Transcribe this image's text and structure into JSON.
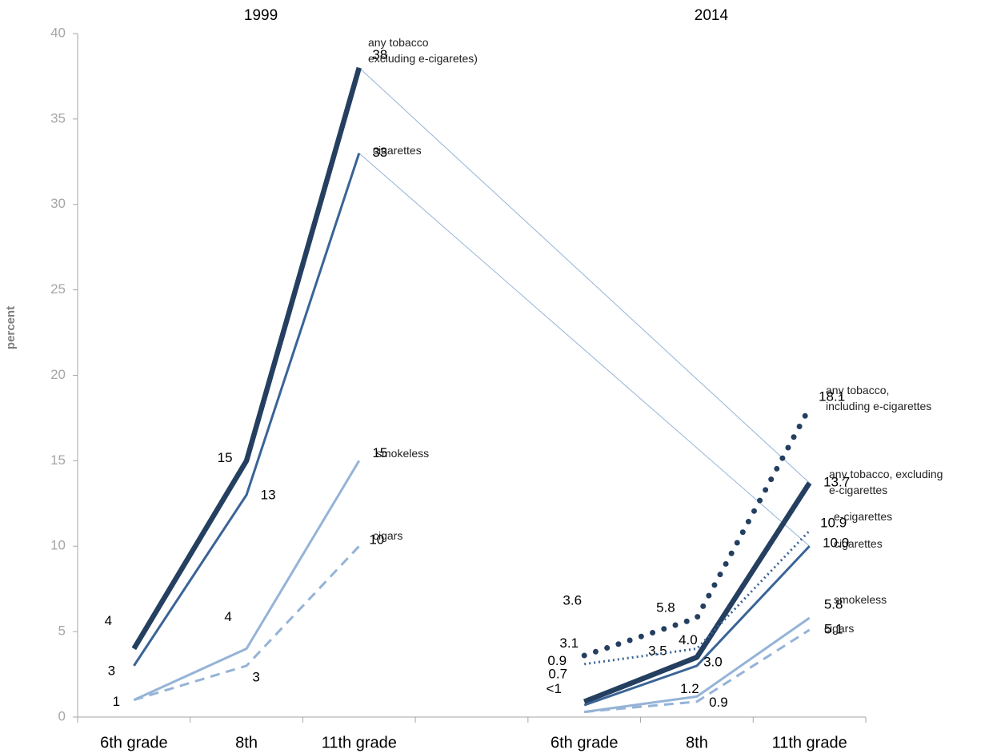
{
  "chart_data": {
    "type": "line",
    "panel_titles": [
      "1999",
      "2014"
    ],
    "y_label": "percent",
    "categories": [
      "6th  grade",
      "8th",
      "11th grade",
      null,
      "6th  grade",
      "8th",
      "11th grade"
    ],
    "ylim": [
      0,
      40
    ],
    "yticks": [
      0,
      5,
      10,
      15,
      20,
      25,
      30,
      35,
      40
    ],
    "grid": false,
    "links": [
      [
        0,
        5
      ],
      [
        1,
        7
      ]
    ],
    "series": [
      {
        "name": "any tobacco\n excluding e-cigaretes)",
        "color": "#243f60",
        "style": "bold",
        "values": [
          4,
          15,
          38,
          null,
          null,
          null,
          null
        ]
      },
      {
        "name": "cigarettes",
        "color": "#3a6496",
        "style": "solid",
        "values": [
          3,
          13,
          33,
          null,
          null,
          null,
          null
        ]
      },
      {
        "name": "smokeless",
        "color": "#95b3d7",
        "style": "solid",
        "values": [
          1,
          4,
          15,
          null,
          null,
          null,
          null
        ]
      },
      {
        "name": "cigars",
        "color": "#95b3d7",
        "style": "dashed",
        "values": [
          1,
          3,
          10,
          null,
          null,
          null,
          null
        ],
        "value_labels": [
          null,
          "3",
          "10",
          null,
          null,
          null,
          null
        ]
      },
      {
        "name": "any tobacco,\nincluding e-cigarettes",
        "color": "#243f60",
        "style": "dotted-bold",
        "values": [
          null,
          null,
          null,
          null,
          3.6,
          5.8,
          18.1
        ],
        "value_labels": [
          null,
          null,
          null,
          null,
          "3.6",
          "5.8",
          "18.1"
        ]
      },
      {
        "name": "any tobacco, excluding\ne-cigarettes",
        "color": "#243f60",
        "style": "bold",
        "values": [
          null,
          null,
          null,
          null,
          0.9,
          3.5,
          13.7
        ],
        "value_labels": [
          null,
          null,
          null,
          null,
          "0.9",
          "3.5",
          "13.7"
        ]
      },
      {
        "name": "e-cigarettes",
        "color": "#3a6496",
        "style": "dotted",
        "values": [
          null,
          null,
          null,
          null,
          3.1,
          4.0,
          10.9
        ],
        "value_labels": [
          null,
          null,
          null,
          null,
          "3.1",
          "4.0",
          "10.9"
        ]
      },
      {
        "name": "cigarettes",
        "color": "#3a6496",
        "style": "solid",
        "values": [
          null,
          null,
          null,
          null,
          0.7,
          3.0,
          10.0
        ],
        "value_labels": [
          null,
          null,
          null,
          null,
          "0.7",
          "3.0",
          "10.0"
        ]
      },
      {
        "name": "smokeless",
        "color": "#95b3d7",
        "style": "solid",
        "values": [
          null,
          null,
          null,
          null,
          0.3,
          1.2,
          5.8
        ],
        "value_labels": [
          null,
          null,
          null,
          null,
          "<1",
          "1.2",
          "5.8"
        ]
      },
      {
        "name": "cigars",
        "color": "#95b3d7",
        "style": "dashed",
        "values": [
          null,
          null,
          null,
          null,
          0.3,
          0.9,
          5.1
        ],
        "value_labels": [
          null,
          null,
          null,
          null,
          null,
          "0.9",
          "5.1"
        ]
      }
    ]
  }
}
